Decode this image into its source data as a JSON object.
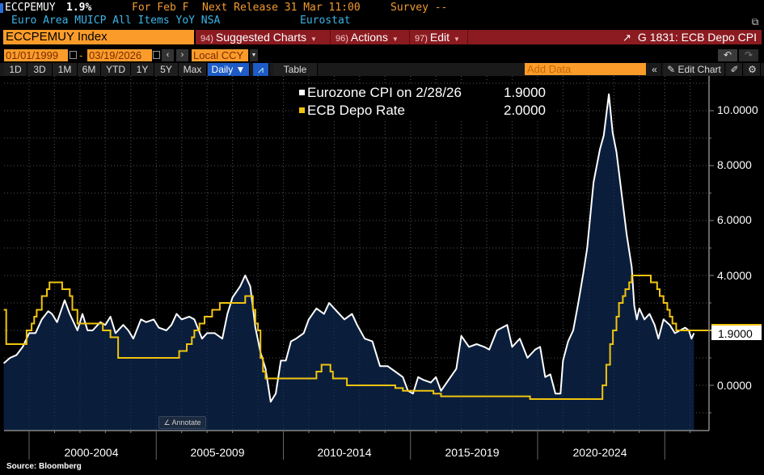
{
  "header": {
    "ticker": "ECCPEMUY",
    "last_value": "1.9%",
    "period": "For Feb F",
    "next_release": "Next Release 31 Mar 11:00",
    "survey": "Survey --",
    "description": "Euro Area MUICP All Items YoY NSA",
    "source": "Eurostat"
  },
  "toolbar": {
    "security": "ECCPEMUY Index",
    "buttons": [
      {
        "num": "94)",
        "label": "Suggested Charts"
      },
      {
        "num": "96)",
        "label": "Actions"
      },
      {
        "num": "97)",
        "label": "Edit"
      }
    ],
    "chart_name": "G 1831: ECB Depo CPI",
    "start_date": "01/01/1999",
    "end_date": "03/19/2026",
    "currency": "Local CCY",
    "periods": [
      "1D",
      "3D",
      "1M",
      "6M",
      "YTD",
      "1Y",
      "5Y",
      "Max"
    ],
    "frequency": "Daily ▼",
    "table_label": "Table",
    "add_data_placeholder": "Add Data",
    "edit_chart_label": "Edit Chart",
    "annotate_label": "Annotate"
  },
  "footer": {
    "source": "Source: Bloomberg"
  },
  "colors": {
    "cpi": "#ffffff",
    "cpi_fill": "#0a1e3c",
    "depo": "#f1c40f",
    "orange": "#fb9c2a",
    "red": "#8b1b21"
  },
  "chart_data": {
    "type": "line",
    "title": "G 1831: ECB Depo CPI",
    "xlabel": "",
    "ylabel": "",
    "ylim": [
      -1.6,
      11.1
    ],
    "xlim": [
      1999.0,
      2026.2
    ],
    "grid": true,
    "legend_position": "top-center",
    "x_tick_labels": [
      "2000-2004",
      "2005-2009",
      "2010-2014",
      "2015-2019",
      "2020-2024"
    ],
    "y_tick_labels": [
      "0.0000",
      "4.0000",
      "6.0000",
      "8.0000",
      "10.0000"
    ],
    "y_ticks": [
      0,
      4,
      6,
      8,
      10
    ],
    "last_value_label": "1.9000",
    "series": [
      {
        "name": "Eurozone CPI on 2/28/26",
        "legend_value": "1.9000",
        "style": "area",
        "points": [
          [
            1999.0,
            0.8
          ],
          [
            1999.25,
            1.0
          ],
          [
            1999.5,
            1.1
          ],
          [
            1999.75,
            1.4
          ],
          [
            2000.0,
            1.9
          ],
          [
            2000.25,
            1.9
          ],
          [
            2000.5,
            2.4
          ],
          [
            2000.75,
            2.7
          ],
          [
            2000.9,
            2.6
          ],
          [
            2001.1,
            2.3
          ],
          [
            2001.4,
            3.1
          ],
          [
            2001.6,
            2.6
          ],
          [
            2001.9,
            2.0
          ],
          [
            2002.1,
            2.6
          ],
          [
            2002.3,
            2.0
          ],
          [
            2002.5,
            2.0
          ],
          [
            2002.8,
            2.3
          ],
          [
            2003.0,
            2.2
          ],
          [
            2003.2,
            2.5
          ],
          [
            2003.4,
            1.9
          ],
          [
            2003.7,
            2.2
          ],
          [
            2003.9,
            2.0
          ],
          [
            2004.1,
            1.7
          ],
          [
            2004.4,
            2.4
          ],
          [
            2004.6,
            2.3
          ],
          [
            2004.9,
            2.4
          ],
          [
            2005.1,
            2.1
          ],
          [
            2005.4,
            2.0
          ],
          [
            2005.6,
            2.2
          ],
          [
            2005.8,
            2.6
          ],
          [
            2006.0,
            2.4
          ],
          [
            2006.3,
            2.5
          ],
          [
            2006.5,
            2.4
          ],
          [
            2006.8,
            1.7
          ],
          [
            2007.0,
            1.9
          ],
          [
            2007.3,
            1.9
          ],
          [
            2007.6,
            1.7
          ],
          [
            2007.8,
            2.6
          ],
          [
            2008.0,
            3.2
          ],
          [
            2008.3,
            3.6
          ],
          [
            2008.5,
            4.0
          ],
          [
            2008.7,
            3.6
          ],
          [
            2008.9,
            2.1
          ],
          [
            2009.1,
            1.2
          ],
          [
            2009.3,
            0.6
          ],
          [
            2009.5,
            -0.6
          ],
          [
            2009.7,
            -0.3
          ],
          [
            2009.9,
            0.9
          ],
          [
            2010.1,
            0.9
          ],
          [
            2010.3,
            1.6
          ],
          [
            2010.5,
            1.7
          ],
          [
            2010.8,
            1.9
          ],
          [
            2011.0,
            2.4
          ],
          [
            2011.3,
            2.8
          ],
          [
            2011.6,
            2.6
          ],
          [
            2011.8,
            3.0
          ],
          [
            2012.1,
            2.7
          ],
          [
            2012.4,
            2.4
          ],
          [
            2012.7,
            2.6
          ],
          [
            2012.9,
            2.2
          ],
          [
            2013.2,
            1.7
          ],
          [
            2013.5,
            1.6
          ],
          [
            2013.8,
            0.7
          ],
          [
            2014.1,
            0.7
          ],
          [
            2014.4,
            0.5
          ],
          [
            2014.7,
            0.3
          ],
          [
            2014.9,
            -0.2
          ],
          [
            2015.1,
            -0.3
          ],
          [
            2015.3,
            0.3
          ],
          [
            2015.5,
            0.2
          ],
          [
            2015.8,
            0.1
          ],
          [
            2016.0,
            0.3
          ],
          [
            2016.2,
            -0.2
          ],
          [
            2016.5,
            0.2
          ],
          [
            2016.8,
            0.6
          ],
          [
            2017.0,
            1.8
          ],
          [
            2017.3,
            1.4
          ],
          [
            2017.6,
            1.5
          ],
          [
            2017.9,
            1.4
          ],
          [
            2018.1,
            1.3
          ],
          [
            2018.4,
            2.0
          ],
          [
            2018.6,
            2.1
          ],
          [
            2018.8,
            2.2
          ],
          [
            2019.0,
            1.4
          ],
          [
            2019.3,
            1.7
          ],
          [
            2019.6,
            1.0
          ],
          [
            2019.9,
            1.3
          ],
          [
            2020.1,
            1.4
          ],
          [
            2020.3,
            0.3
          ],
          [
            2020.5,
            0.4
          ],
          [
            2020.7,
            -0.3
          ],
          [
            2020.9,
            -0.3
          ],
          [
            2021.0,
            0.9
          ],
          [
            2021.2,
            1.6
          ],
          [
            2021.4,
            2.0
          ],
          [
            2021.6,
            3.0
          ],
          [
            2021.8,
            4.1
          ],
          [
            2021.95,
            5.0
          ],
          [
            2022.2,
            7.4
          ],
          [
            2022.45,
            8.6
          ],
          [
            2022.6,
            9.1
          ],
          [
            2022.8,
            10.6
          ],
          [
            2022.95,
            9.2
          ],
          [
            2023.1,
            8.5
          ],
          [
            2023.3,
            7.0
          ],
          [
            2023.5,
            5.5
          ],
          [
            2023.7,
            4.3
          ],
          [
            2023.8,
            2.9
          ],
          [
            2023.9,
            2.4
          ],
          [
            2024.0,
            2.8
          ],
          [
            2024.2,
            2.4
          ],
          [
            2024.4,
            2.6
          ],
          [
            2024.6,
            2.2
          ],
          [
            2024.75,
            1.7
          ],
          [
            2024.95,
            2.4
          ],
          [
            2025.2,
            2.2
          ],
          [
            2025.4,
            1.9
          ],
          [
            2025.6,
            2.0
          ],
          [
            2025.8,
            2.1
          ],
          [
            2025.95,
            2.0
          ],
          [
            2026.05,
            1.7
          ],
          [
            2026.15,
            1.9
          ]
        ]
      },
      {
        "name": "ECB Depo Rate",
        "legend_value": "2.0000",
        "style": "step",
        "points": [
          [
            1999.0,
            2.75
          ],
          [
            1999.1,
            1.5
          ],
          [
            1999.9,
            2.0
          ],
          [
            2000.1,
            2.25
          ],
          [
            2000.2,
            2.5
          ],
          [
            2000.3,
            2.75
          ],
          [
            2000.5,
            3.25
          ],
          [
            2000.7,
            3.5
          ],
          [
            2000.8,
            3.75
          ],
          [
            2001.3,
            3.5
          ],
          [
            2001.6,
            3.25
          ],
          [
            2001.7,
            2.75
          ],
          [
            2001.9,
            2.25
          ],
          [
            2002.9,
            2.0
          ],
          [
            2003.2,
            1.75
          ],
          [
            2003.5,
            1.0
          ],
          [
            2005.9,
            1.25
          ],
          [
            2006.2,
            1.5
          ],
          [
            2006.4,
            1.75
          ],
          [
            2006.5,
            2.0
          ],
          [
            2006.7,
            2.25
          ],
          [
            2006.9,
            2.5
          ],
          [
            2007.2,
            2.75
          ],
          [
            2007.5,
            3.0
          ],
          [
            2008.5,
            3.25
          ],
          [
            2008.8,
            2.75
          ],
          [
            2008.9,
            2.25
          ],
          [
            2009.0,
            2.0
          ],
          [
            2009.1,
            1.0
          ],
          [
            2009.2,
            0.5
          ],
          [
            2009.3,
            0.25
          ],
          [
            2011.3,
            0.5
          ],
          [
            2011.5,
            0.75
          ],
          [
            2011.85,
            0.5
          ],
          [
            2011.95,
            0.25
          ],
          [
            2012.5,
            0.0
          ],
          [
            2014.4,
            -0.1
          ],
          [
            2014.7,
            -0.2
          ],
          [
            2015.9,
            -0.3
          ],
          [
            2016.2,
            -0.4
          ],
          [
            2019.7,
            -0.5
          ],
          [
            2022.55,
            0.0
          ],
          [
            2022.7,
            0.75
          ],
          [
            2022.85,
            1.5
          ],
          [
            2022.96,
            2.0
          ],
          [
            2023.1,
            2.5
          ],
          [
            2023.2,
            3.0
          ],
          [
            2023.35,
            3.25
          ],
          [
            2023.45,
            3.5
          ],
          [
            2023.6,
            3.75
          ],
          [
            2023.7,
            4.0
          ],
          [
            2024.45,
            3.75
          ],
          [
            2024.7,
            3.5
          ],
          [
            2024.8,
            3.25
          ],
          [
            2024.95,
            3.0
          ],
          [
            2025.1,
            2.75
          ],
          [
            2025.2,
            2.5
          ],
          [
            2025.3,
            2.25
          ],
          [
            2025.45,
            2.0
          ],
          [
            2026.2,
            2.0
          ]
        ]
      }
    ]
  }
}
